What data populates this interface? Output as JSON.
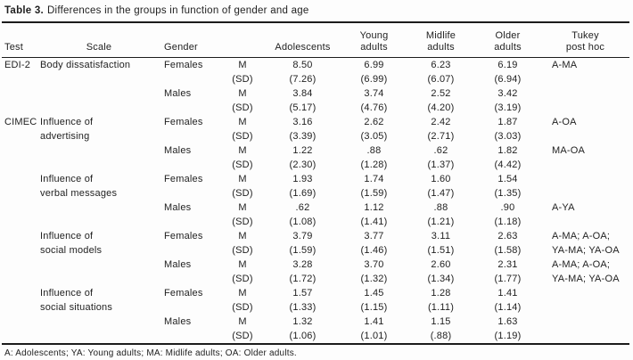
{
  "title": {
    "label": "Table 3.",
    "caption": "Differences in the groups in function of gender and age"
  },
  "table": {
    "columns": [
      {
        "key": "test",
        "label": "Test"
      },
      {
        "key": "scale",
        "label": "Scale"
      },
      {
        "key": "gender",
        "label": "Gender"
      },
      {
        "key": "stat",
        "label": ""
      },
      {
        "key": "a",
        "label": "Adolescents"
      },
      {
        "key": "ya",
        "label": "Young\nadults"
      },
      {
        "key": "ma",
        "label": "Midlife\nadults"
      },
      {
        "key": "oa",
        "label": "Older\nadults"
      },
      {
        "key": "tukey",
        "label": "Tukey\npost hoc"
      }
    ],
    "rows": [
      {
        "test": "EDI-2",
        "scale": "Body dissatisfaction",
        "gender": "Females",
        "stat": "M",
        "a": "8.50",
        "ya": "6.99",
        "ma": "6.23",
        "oa": "6.19",
        "tukey": "A-MA"
      },
      {
        "test": "",
        "scale": "",
        "gender": "",
        "stat": "(SD)",
        "a": "(7.26)",
        "ya": "(6.99)",
        "ma": "(6.07)",
        "oa": "(6.94)",
        "tukey": ""
      },
      {
        "test": "",
        "scale": "",
        "gender": "Males",
        "stat": "M",
        "a": "3.84",
        "ya": "3.74",
        "ma": "2.52",
        "oa": "3.42",
        "tukey": ""
      },
      {
        "test": "",
        "scale": "",
        "gender": "",
        "stat": "(SD)",
        "a": "(5.17)",
        "ya": "(4.76)",
        "ma": "(4.20)",
        "oa": "(3.19)",
        "tukey": ""
      },
      {
        "test": "CIMEC",
        "scale": "Influence of",
        "gender": "Females",
        "stat": "M",
        "a": "3.16",
        "ya": "2.62",
        "ma": "2.42",
        "oa": "1.87",
        "tukey": "A-OA"
      },
      {
        "test": "",
        "scale": "advertising",
        "gender": "",
        "stat": "(SD)",
        "a": "(3.39)",
        "ya": "(3.05)",
        "ma": "(2.71)",
        "oa": "(3.03)",
        "tukey": ""
      },
      {
        "test": "",
        "scale": "",
        "gender": "Males",
        "stat": "M",
        "a": "1.22",
        "ya": ".88",
        "ma": ".62",
        "oa": "1.82",
        "tukey": "MA-OA"
      },
      {
        "test": "",
        "scale": "",
        "gender": "",
        "stat": "(SD)",
        "a": "(2.30)",
        "ya": "(1.28)",
        "ma": "(1.37)",
        "oa": "(4.42)",
        "tukey": ""
      },
      {
        "test": "",
        "scale": "Influence of",
        "gender": "Females",
        "stat": "M",
        "a": "1.93",
        "ya": "1.74",
        "ma": "1.60",
        "oa": "1.54",
        "tukey": ""
      },
      {
        "test": "",
        "scale": "verbal messages",
        "gender": "",
        "stat": "(SD)",
        "a": "(1.69)",
        "ya": "(1.59)",
        "ma": "(1.47)",
        "oa": "(1.35)",
        "tukey": ""
      },
      {
        "test": "",
        "scale": "",
        "gender": "Males",
        "stat": "M",
        "a": ".62",
        "ya": "1.12",
        "ma": ".88",
        "oa": ".90",
        "tukey": "A-YA"
      },
      {
        "test": "",
        "scale": "",
        "gender": "",
        "stat": "(SD)",
        "a": "(1.08)",
        "ya": "(1.41)",
        "ma": "(1.21)",
        "oa": "(1.18)",
        "tukey": ""
      },
      {
        "test": "",
        "scale": "Influence of",
        "gender": "Females",
        "stat": "M",
        "a": "3.79",
        "ya": "3.77",
        "ma": "3.11",
        "oa": "2.63",
        "tukey": "A-MA; A-OA;"
      },
      {
        "test": "",
        "scale": "social models",
        "gender": "",
        "stat": "(SD)",
        "a": "(1.59)",
        "ya": "(1.46)",
        "ma": "(1.51)",
        "oa": "(1.58)",
        "tukey": "YA-MA; YA-OA"
      },
      {
        "test": "",
        "scale": "",
        "gender": "Males",
        "stat": "M",
        "a": "3.28",
        "ya": "3.70",
        "ma": "2.60",
        "oa": "2.31",
        "tukey": "A-MA; A-OA;"
      },
      {
        "test": "",
        "scale": "",
        "gender": "",
        "stat": "(SD)",
        "a": "(1.72)",
        "ya": "(1.32)",
        "ma": "(1.34)",
        "oa": "(1.77)",
        "tukey": "YA-MA; YA-OA"
      },
      {
        "test": "",
        "scale": "Influence of",
        "gender": "Females",
        "stat": "M",
        "a": "1.57",
        "ya": "1.45",
        "ma": "1.28",
        "oa": "1.41",
        "tukey": ""
      },
      {
        "test": "",
        "scale": "social situations",
        "gender": "",
        "stat": "(SD)",
        "a": "(1.33)",
        "ya": "(1.15)",
        "ma": "(1.11)",
        "oa": "(1.14)",
        "tukey": ""
      },
      {
        "test": "",
        "scale": "",
        "gender": "Males",
        "stat": "M",
        "a": "1.32",
        "ya": "1.41",
        "ma": "1.15",
        "oa": "1.63",
        "tukey": ""
      },
      {
        "test": "",
        "scale": "",
        "gender": "",
        "stat": "(SD)",
        "a": "(1.06)",
        "ya": "(1.01)",
        "ma": "(.88)",
        "oa": "(1.19)",
        "tukey": ""
      }
    ]
  },
  "footnote": "A: Adolescents; YA: Young adults; MA: Midlife adults; OA: Older adults."
}
